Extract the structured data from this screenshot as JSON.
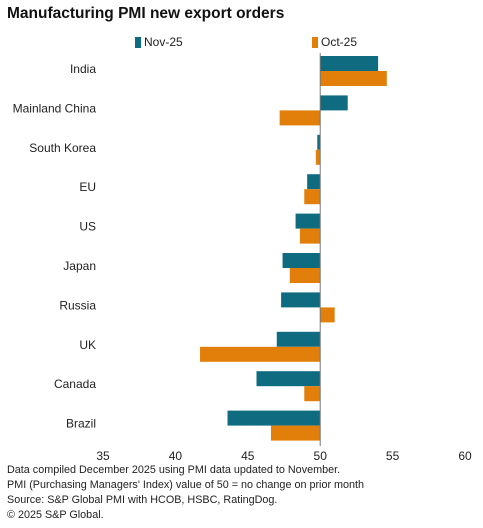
{
  "chart_data": {
    "type": "bar",
    "orientation": "horizontal",
    "title": "Manufacturing PMI new export orders",
    "categories": [
      "India",
      "Mainland China",
      "South Korea",
      "EU",
      "US",
      "Japan",
      "Russia",
      "UK",
      "Canada",
      "Brazil"
    ],
    "series": [
      {
        "name": "Nov-25",
        "color": "#0f6b80",
        "values": [
          54.0,
          51.9,
          49.8,
          49.1,
          48.3,
          47.4,
          47.3,
          47.0,
          45.6,
          43.6
        ]
      },
      {
        "name": "Oct-25",
        "color": "#e17f0a",
        "values": [
          54.6,
          47.2,
          49.7,
          48.9,
          48.6,
          47.9,
          51.0,
          41.7,
          48.9,
          46.6
        ]
      }
    ],
    "baseline": 50,
    "xlim": [
      35,
      60
    ],
    "xticks": [
      "35",
      "40",
      "45",
      "50",
      "55",
      "60"
    ],
    "grid": false,
    "legend_position": "top"
  },
  "footer": {
    "line1": "Data compiled December 2025 using PMI data updated to November.",
    "line2": "PMI (Purchasing Managers' Index) value of 50 = no change on prior month",
    "line3": "Source: S&P Global PMI with HCOB, HSBC, RatingDog.",
    "line4": "© 2025 S&P Global."
  }
}
